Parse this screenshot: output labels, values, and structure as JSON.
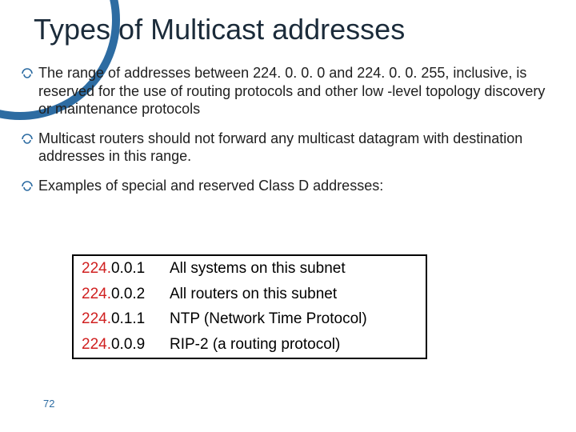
{
  "title": "Types of Multicast addresses",
  "bullets": [
    "The range of addresses between 224. 0. 0. 0 and 224. 0. 0. 255, inclusive, is reserved for the use of routing protocols and other low -level topology discovery or maintenance protocols",
    "Multicast routers should not forward any multicast datagram with destination addresses in this range.",
    "Examples of special and reserved Class D addresses:"
  ],
  "table": {
    "prefix_color": "#d02020",
    "text_color": "#000000",
    "border_color": "#000000",
    "rows": [
      {
        "prefix": "224.",
        "suffix": "0.0.1",
        "desc": "All systems on this subnet"
      },
      {
        "prefix": "224.",
        "suffix": "0.0.2",
        "desc": "All routers on this subnet"
      },
      {
        "prefix": "224.",
        "suffix": "0.1.1",
        "desc": "NTP (Network Time Protocol)"
      },
      {
        "prefix": "224.",
        "suffix": "0.0.9",
        "desc": "RIP-2 (a routing protocol)"
      }
    ]
  },
  "page_number": "72",
  "colors": {
    "background": "#ffffff",
    "title_text": "#1b2b3a",
    "body_text": "#202020",
    "accent": "#2d6ca2",
    "arc_border": "#2d6ca2",
    "pagenum": "#2d6ca2"
  },
  "typography": {
    "title_fontsize": 36,
    "body_fontsize": 18,
    "table_fontsize": 19,
    "pagenum_fontsize": 13,
    "title_font": "Trebuchet MS",
    "body_font": "Segoe UI"
  }
}
